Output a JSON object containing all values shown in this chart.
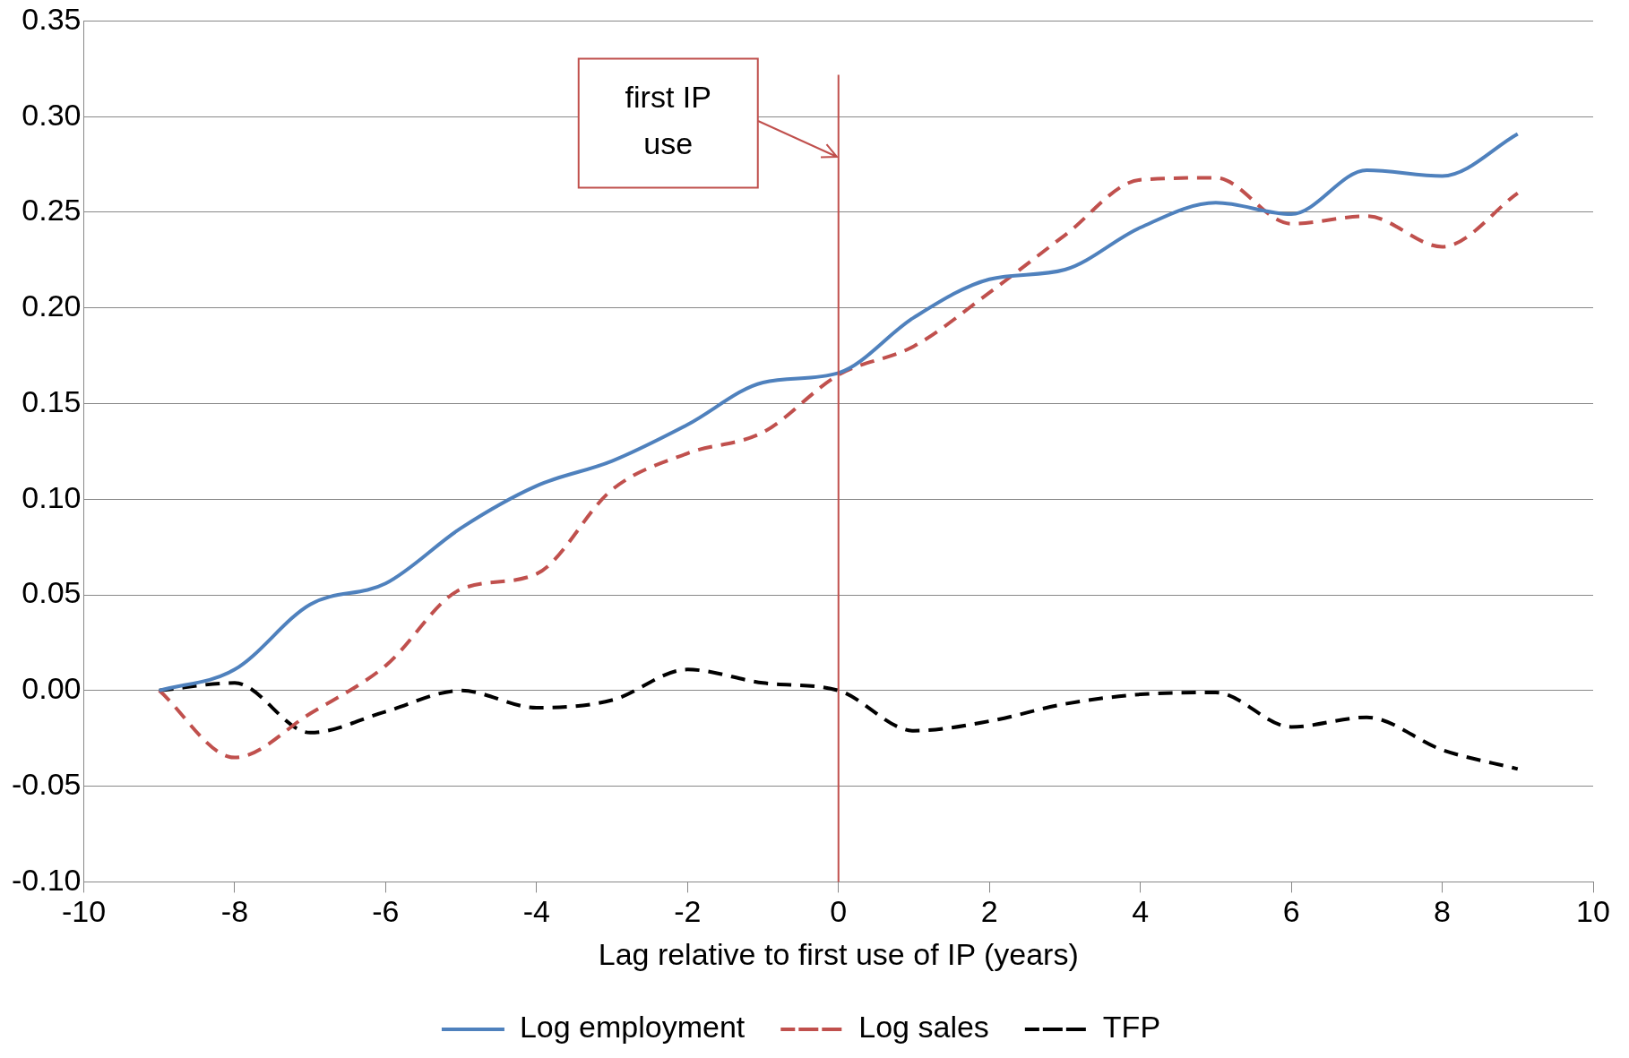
{
  "chart_data": {
    "type": "line",
    "xlabel": "Lag relative to first use of IP (years)",
    "x": [
      -9,
      -8,
      -7,
      -6,
      -5,
      -4,
      -3,
      -2,
      -1,
      0,
      1,
      2,
      3,
      4,
      5,
      6,
      7,
      8,
      9
    ],
    "series": [
      {
        "name": "Log employment",
        "color": "#4f81bd",
        "line_style": "solid",
        "values": [
          0,
          0.011,
          0.045,
          0.056,
          0.085,
          0.107,
          0.12,
          0.139,
          0.161,
          0.166,
          0.195,
          0.215,
          0.22,
          0.242,
          0.255,
          0.249,
          0.272,
          0.269,
          0.291
        ]
      },
      {
        "name": "Log sales",
        "color": "#c0504d",
        "line_style": "dashed",
        "values": [
          0,
          -0.035,
          -0.012,
          0.013,
          0.053,
          0.061,
          0.105,
          0.124,
          0.135,
          0.165,
          0.18,
          0.208,
          0.238,
          0.267,
          0.268,
          0.244,
          0.248,
          0.232,
          0.26
        ]
      },
      {
        "name": "TFP",
        "color": "#000000",
        "line_style": "dashed",
        "values": [
          0,
          0.004,
          -0.022,
          -0.011,
          0,
          -0.009,
          -0.005,
          0.011,
          0.004,
          0,
          -0.021,
          -0.016,
          -0.007,
          -0.002,
          -0.001,
          -0.019,
          -0.014,
          -0.031,
          -0.041
        ]
      }
    ],
    "xlim": [
      -10,
      10
    ],
    "xticks": [
      -10,
      -8,
      -6,
      -4,
      -2,
      0,
      2,
      4,
      6,
      8,
      10
    ],
    "ylim": [
      -0.1,
      0.35
    ],
    "yticks": [
      {
        "value": -0.1,
        "label": "-0.10"
      },
      {
        "value": -0.05,
        "label": "-0.05"
      },
      {
        "value": 0,
        "label": "0.00"
      },
      {
        "value": 0.05,
        "label": "0.05"
      },
      {
        "value": 0.1,
        "label": "0.10"
      },
      {
        "value": 0.15,
        "label": "0.15"
      },
      {
        "value": 0.2,
        "label": "0.20"
      },
      {
        "value": 0.25,
        "label": "0.25"
      },
      {
        "value": 0.3,
        "label": "0.30"
      },
      {
        "value": 0.35,
        "label": "0.35"
      }
    ],
    "ref_lines": [
      {
        "axis": "x",
        "value": 0,
        "color": "#c0504d"
      }
    ],
    "annotations": [
      "first IP use"
    ],
    "grid": "y",
    "legend": "bottom",
    "marker": "none"
  }
}
